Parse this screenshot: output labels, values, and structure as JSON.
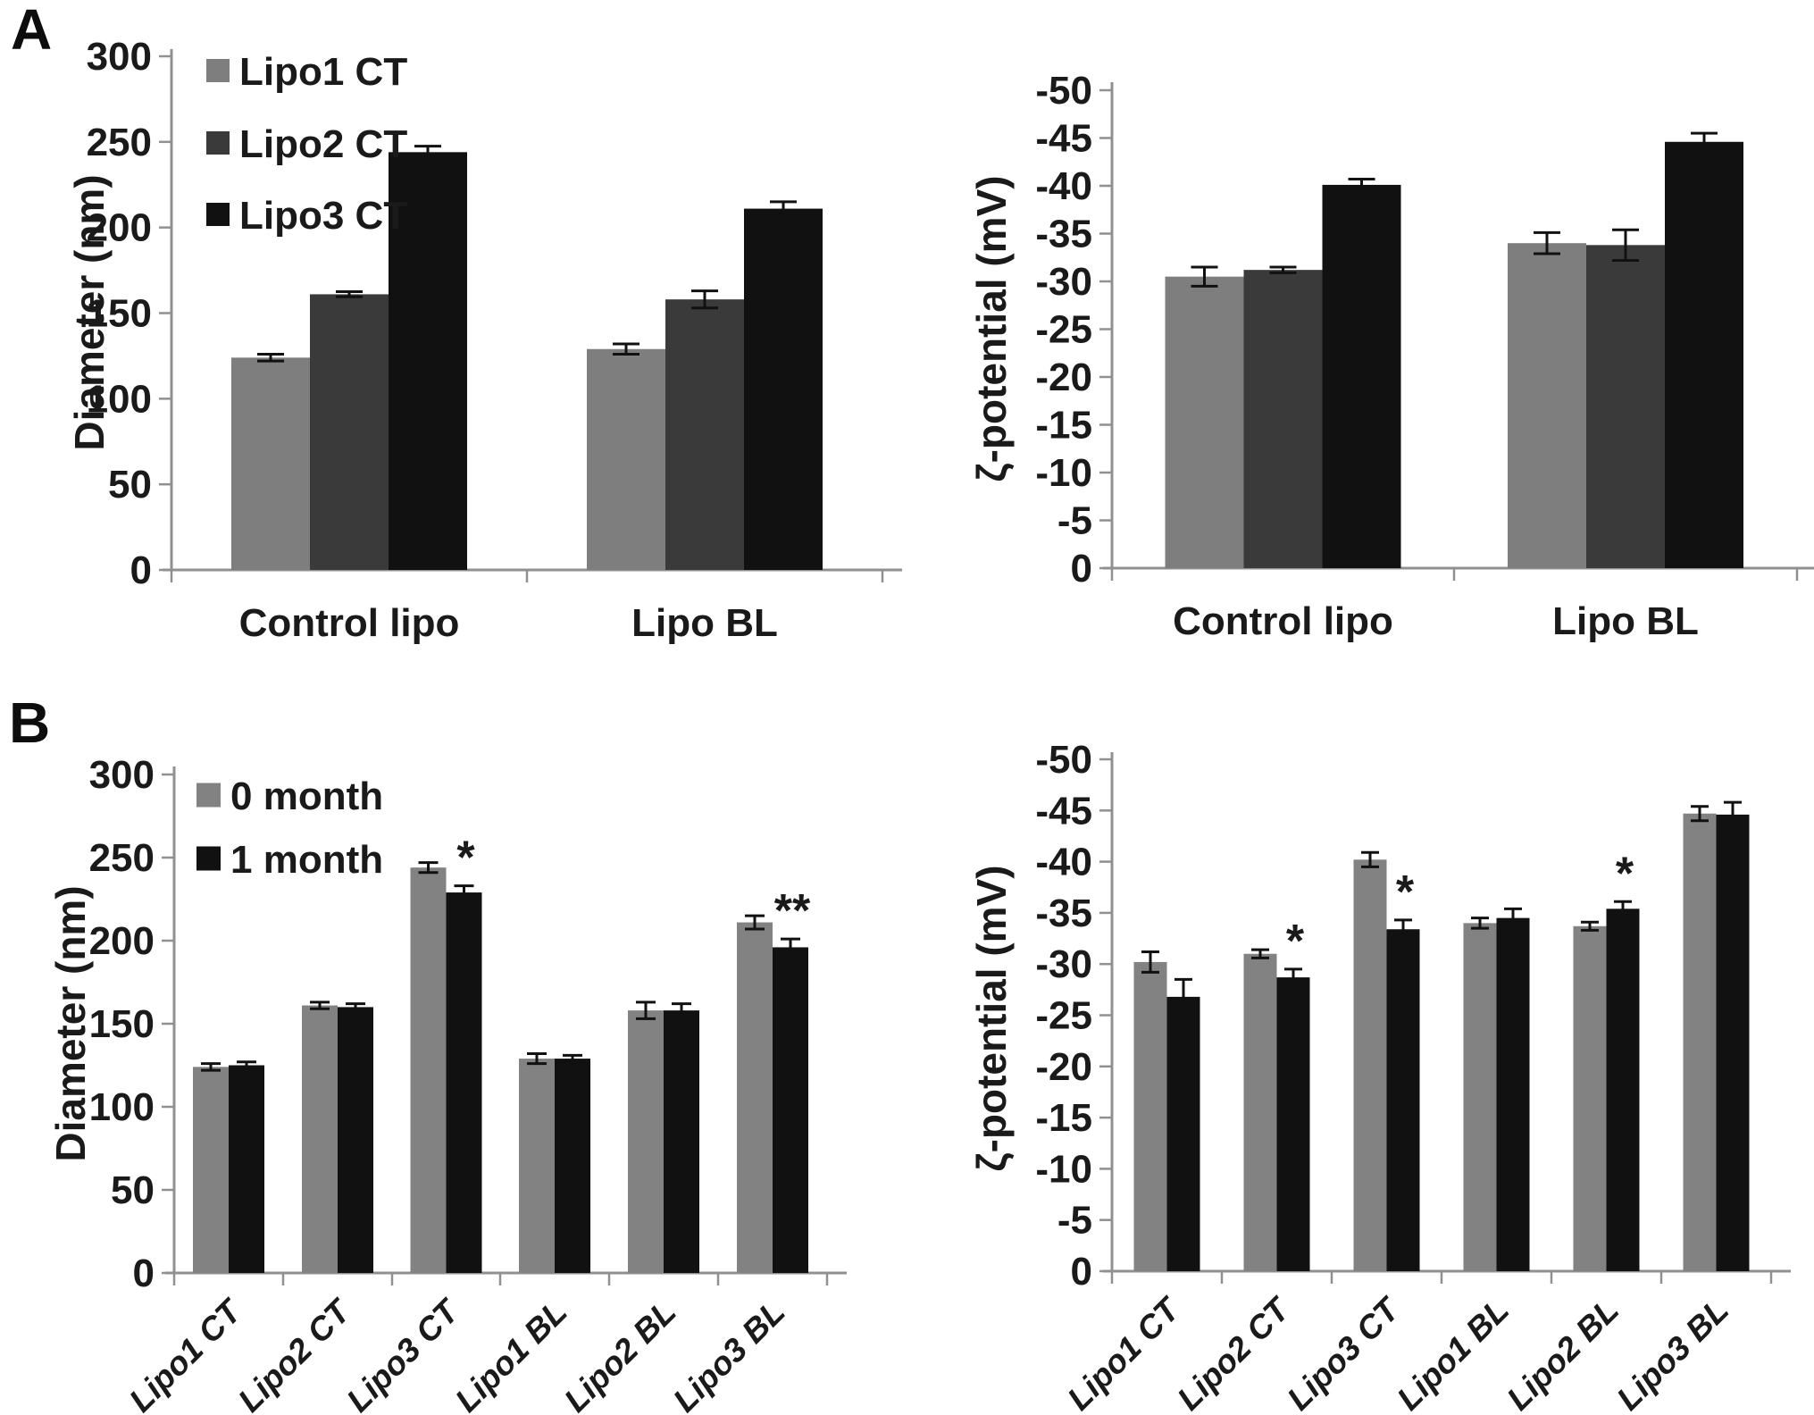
{
  "panels": {
    "a": "A",
    "b": "B"
  },
  "colors": {
    "bar_light_gray": "#7e7e7e",
    "bar_mid_gray": "#828282",
    "bar_dark_gray": "#3a3a3a",
    "bar_black": "#111111",
    "axis": "#909090",
    "error_bar": "#111111",
    "text": "#1a1a1a"
  },
  "chart_data": [
    {
      "type": "bar",
      "panel": "A",
      "position": "left",
      "title": "",
      "xlabel": "",
      "ylabel": "Diameter (nm)",
      "ylim": [
        0,
        300
      ],
      "grid": false,
      "ytick_labels": [
        "300",
        "250",
        "200",
        "150",
        "100",
        "50",
        "0"
      ],
      "categories": [
        "Control lipo",
        "Lipo BL"
      ],
      "series": [
        {
          "name": "Lipo1 CT",
          "color": "#7e7e7e",
          "values": [
            124,
            129
          ],
          "errors": [
            2,
            3
          ]
        },
        {
          "name": "Lipo2 CT",
          "color": "#3a3a3a",
          "values": [
            161,
            158
          ],
          "errors": [
            1.5,
            5
          ]
        },
        {
          "name": "Lipo3 CT",
          "color": "#111111",
          "values": [
            244,
            211
          ],
          "errors": [
            3.5,
            4
          ]
        }
      ],
      "legend": {
        "position": "top-left",
        "items": [
          "Lipo1 CT",
          "Lipo2 CT",
          "Lipo3 CT"
        ]
      },
      "annotations": []
    },
    {
      "type": "bar",
      "panel": "A",
      "position": "right",
      "title": "",
      "xlabel": "",
      "ylabel": "ζ-potential (mV)",
      "ylim": [
        0,
        -50
      ],
      "grid": false,
      "ytick_labels": [
        "-50",
        "-45",
        "-40",
        "-35",
        "-30",
        "-25",
        "-20",
        "-15",
        "-10",
        "-5",
        "0"
      ],
      "categories": [
        "Control lipo",
        "Lipo BL"
      ],
      "series": [
        {
          "name": "Lipo1 CT",
          "color": "#7e7e7e",
          "values": [
            -30.5,
            -34.0
          ],
          "errors": [
            1.0,
            1.1
          ]
        },
        {
          "name": "Lipo2 CT",
          "color": "#3a3a3a",
          "values": [
            -31.2,
            -33.8
          ],
          "errors": [
            0.3,
            1.6
          ]
        },
        {
          "name": "Lipo3 CT",
          "color": "#111111",
          "values": [
            -40.1,
            -44.6
          ],
          "errors": [
            0.6,
            0.9
          ]
        }
      ],
      "annotations": []
    },
    {
      "type": "bar",
      "panel": "B",
      "position": "left",
      "title": "",
      "xlabel": "",
      "ylabel": "Diameter (nm)",
      "ylim": [
        0,
        300
      ],
      "grid": false,
      "ytick_labels": [
        "300",
        "250",
        "200",
        "150",
        "100",
        "50",
        "0"
      ],
      "categories": [
        "Lipo1 CT",
        "Lipo2 CT",
        "Lipo3 CT",
        "Lipo1 BL",
        "Lipo2 BL",
        "Lipo3 BL"
      ],
      "series": [
        {
          "name": "0 month",
          "color": "#828282",
          "values": [
            124,
            161,
            244,
            129,
            158,
            211
          ],
          "errors": [
            2,
            2,
            3,
            3,
            5,
            4
          ]
        },
        {
          "name": "1 month",
          "color": "#111111",
          "values": [
            125,
            160,
            229,
            129,
            158,
            196
          ],
          "errors": [
            2,
            2,
            4,
            2,
            4,
            5
          ]
        }
      ],
      "legend": {
        "position": "top-left",
        "items": [
          "0 month",
          "1 month"
        ]
      },
      "annotations": [
        {
          "category": "Lipo3 CT",
          "series": "1 month",
          "text": "*"
        },
        {
          "category": "Lipo3 BL",
          "series": "1 month",
          "text": "**"
        }
      ]
    },
    {
      "type": "bar",
      "panel": "B",
      "position": "right",
      "title": "",
      "xlabel": "",
      "ylabel": "ζ-potential (mV)",
      "ylim": [
        0,
        -50
      ],
      "grid": false,
      "ytick_labels": [
        "-50",
        "-45",
        "-40",
        "-35",
        "-30",
        "-25",
        "-20",
        "-15",
        "-10",
        "-5",
        "0"
      ],
      "categories": [
        "Lipo1 CT",
        "Lipo2 CT",
        "Lipo3 CT",
        "Lipo1 BL",
        "Lipo2 BL",
        "Lipo3 BL"
      ],
      "series": [
        {
          "name": "0 month",
          "color": "#828282",
          "values": [
            -30.2,
            -31.0,
            -40.2,
            -34.0,
            -33.7,
            -44.7
          ],
          "errors": [
            1.0,
            0.4,
            0.7,
            0.5,
            0.4,
            0.7
          ]
        },
        {
          "name": "1 month",
          "color": "#111111",
          "values": [
            -26.8,
            -28.7,
            -33.4,
            -34.5,
            -35.4,
            -44.6
          ],
          "errors": [
            1.7,
            0.8,
            0.9,
            0.9,
            0.7,
            1.2
          ]
        }
      ],
      "annotations": [
        {
          "category": "Lipo2 CT",
          "series": "1 month",
          "text": "*"
        },
        {
          "category": "Lipo3 CT",
          "series": "1 month",
          "text": "*"
        },
        {
          "category": "Lipo2 BL",
          "series": "1 month",
          "text": "*"
        }
      ]
    }
  ]
}
